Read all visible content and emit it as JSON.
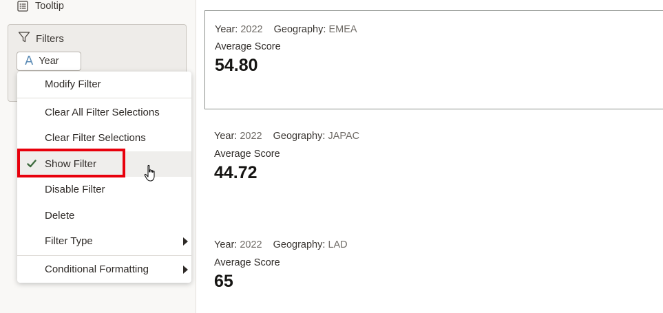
{
  "sidebar": {
    "tooltip_label": "Tooltip",
    "filters_label": "Filters",
    "year_filter_label": "Year",
    "year_filter_icon_glyph": "A"
  },
  "context_menu": {
    "items": [
      {
        "label": "Modify Filter"
      },
      {
        "label": "Clear All Filter Selections"
      },
      {
        "label": "Clear Filter Selections"
      },
      {
        "label": "Show Filter",
        "checked": true
      },
      {
        "label": "Disable Filter"
      },
      {
        "label": "Delete"
      },
      {
        "label": "Filter Type",
        "submenu": true
      },
      {
        "label": "Conditional Formatting",
        "submenu": true
      }
    ]
  },
  "tiles": [
    {
      "year_label": "Year:",
      "year_value": "2022",
      "geo_label": "Geography:",
      "geo_value": "EMEA",
      "metric_label": "Average Score",
      "metric_value": "54.80"
    },
    {
      "year_label": "Year:",
      "year_value": "2022",
      "geo_label": "Geography:",
      "geo_value": "JAPAC",
      "metric_label": "Average Score",
      "metric_value": "44.72"
    },
    {
      "year_label": "Year:",
      "year_value": "2022",
      "geo_label": "Geography:",
      "geo_value": "LAD",
      "metric_label": "Average Score",
      "metric_value": "65"
    }
  ],
  "colors": {
    "highlight": "#e8000c",
    "check": "#3d6b3e",
    "attribute_icon": "#5b8bb5"
  }
}
